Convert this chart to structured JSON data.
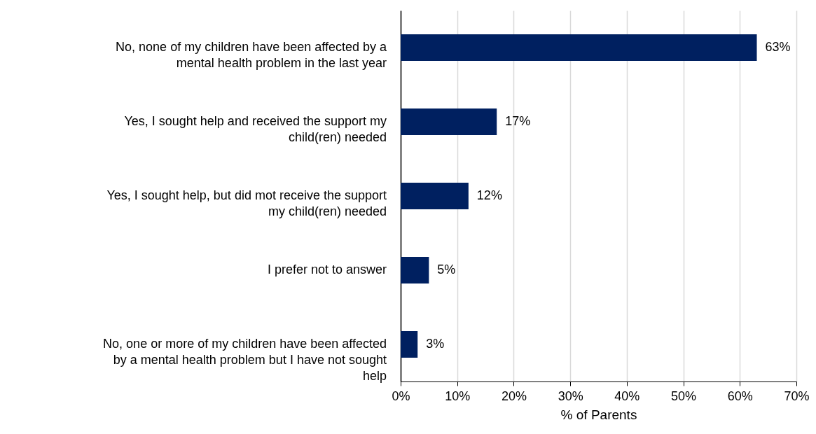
{
  "chart_data": {
    "type": "bar",
    "orientation": "horizontal",
    "xlabel": "% of Parents",
    "categories": [
      "No, none of my children have been affected by a mental health problem in the last year",
      "Yes, I sought help and received the support my child(ren) needed",
      "Yes, I sought help, but did mot receive the support my child(ren) needed",
      "I prefer not to answer",
      "No, one or more of my children have been affected by a mental health problem but I have not sought help"
    ],
    "values": [
      63,
      17,
      12,
      5,
      3
    ],
    "value_labels": [
      "63%",
      "17%",
      "12%",
      "5%",
      "3%"
    ],
    "color": "#002060",
    "xlim": [
      0,
      70
    ],
    "xticks": [
      {
        "value": 0,
        "label": "0%"
      },
      {
        "value": 10,
        "label": "10%"
      },
      {
        "value": 20,
        "label": "20%"
      },
      {
        "value": 30,
        "label": "30%"
      },
      {
        "value": 40,
        "label": "40%"
      },
      {
        "value": 50,
        "label": "50%"
      },
      {
        "value": 60,
        "label": "60%"
      },
      {
        "value": 70,
        "label": "70%"
      }
    ],
    "grid": "x"
  }
}
